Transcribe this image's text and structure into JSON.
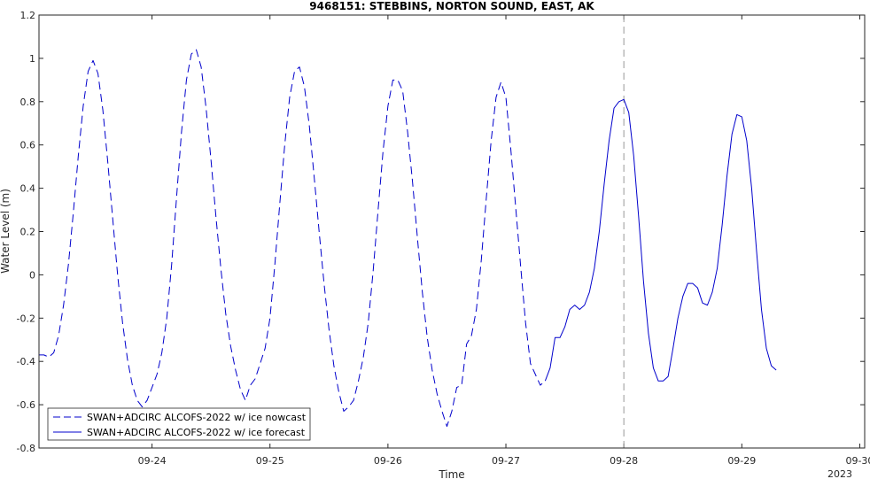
{
  "chart_data": {
    "type": "line",
    "title": "9468151: STEBBINS, NORTON SOUND, EAST, AK",
    "xlabel": "Time",
    "ylabel": "Water Level (m)",
    "year_label": "2023",
    "x_range": [
      "2023-09-23 01:00",
      "2023-09-30 01:00"
    ],
    "ylim": [
      -0.8,
      1.2
    ],
    "x_ticks": [
      {
        "label": "09-24",
        "t": "2023-09-24 00:00"
      },
      {
        "label": "09-25",
        "t": "2023-09-25 00:00"
      },
      {
        "label": "09-26",
        "t": "2023-09-26 00:00"
      },
      {
        "label": "09-27",
        "t": "2023-09-27 00:00"
      },
      {
        "label": "09-28",
        "t": "2023-09-28 00:00"
      },
      {
        "label": "09-29",
        "t": "2023-09-29 00:00"
      },
      {
        "label": "09-30",
        "t": "2023-09-30 00:00"
      }
    ],
    "y_ticks": [
      "-0.8",
      "-0.6",
      "-0.4",
      "-0.2",
      "0",
      "0.2",
      "0.4",
      "0.6",
      "0.8",
      "1",
      "1.2"
    ],
    "grid": false,
    "legend_position": "bottom-left",
    "vline": {
      "t": "2023-09-28 00:00",
      "style": "dashed",
      "color": "#999999"
    },
    "series": [
      {
        "name": "SWAN+ADCIRC ALCOFS-2022 w/ ice nowcast",
        "style": "dashed",
        "color": "#0000cc",
        "points": [
          [
            "2023-09-23 01:00",
            -0.37
          ],
          [
            "2023-09-23 02:00",
            -0.37
          ],
          [
            "2023-09-23 03:00",
            -0.38
          ],
          [
            "2023-09-23 04:00",
            -0.36
          ],
          [
            "2023-09-23 05:00",
            -0.28
          ],
          [
            "2023-09-23 06:00",
            -0.14
          ],
          [
            "2023-09-23 07:00",
            0.05
          ],
          [
            "2023-09-23 08:00",
            0.29
          ],
          [
            "2023-09-23 09:00",
            0.55
          ],
          [
            "2023-09-23 10:00",
            0.78
          ],
          [
            "2023-09-23 11:00",
            0.94
          ],
          [
            "2023-09-23 12:00",
            0.99
          ],
          [
            "2023-09-23 13:00",
            0.93
          ],
          [
            "2023-09-23 14:00",
            0.76
          ],
          [
            "2023-09-23 15:00",
            0.52
          ],
          [
            "2023-09-23 16:00",
            0.26
          ],
          [
            "2023-09-23 17:00",
            0.0
          ],
          [
            "2023-09-23 18:00",
            -0.22
          ],
          [
            "2023-09-23 19:00",
            -0.39
          ],
          [
            "2023-09-23 20:00",
            -0.51
          ],
          [
            "2023-09-23 21:00",
            -0.58
          ],
          [
            "2023-09-23 22:00",
            -0.61
          ],
          [
            "2023-09-23 23:00",
            -0.58
          ],
          [
            "2023-09-24 00:00",
            -0.52
          ],
          [
            "2023-09-24 01:00",
            -0.46
          ],
          [
            "2023-09-24 02:00",
            -0.36
          ],
          [
            "2023-09-24 03:00",
            -0.2
          ],
          [
            "2023-09-24 04:00",
            0.05
          ],
          [
            "2023-09-24 05:00",
            0.36
          ],
          [
            "2023-09-24 06:00",
            0.66
          ],
          [
            "2023-09-24 07:00",
            0.9
          ],
          [
            "2023-09-24 08:00",
            1.02
          ],
          [
            "2023-09-24 09:00",
            1.04
          ],
          [
            "2023-09-24 10:00",
            0.96
          ],
          [
            "2023-09-24 11:00",
            0.77
          ],
          [
            "2023-09-24 12:00",
            0.53
          ],
          [
            "2023-09-24 13:00",
            0.27
          ],
          [
            "2023-09-24 14:00",
            0.03
          ],
          [
            "2023-09-24 15:00",
            -0.18
          ],
          [
            "2023-09-24 16:00",
            -0.33
          ],
          [
            "2023-09-24 17:00",
            -0.44
          ],
          [
            "2023-09-24 18:00",
            -0.53
          ],
          [
            "2023-09-24 19:00",
            -0.58
          ],
          [
            "2023-09-24 20:00",
            -0.51
          ],
          [
            "2023-09-24 21:00",
            -0.48
          ],
          [
            "2023-09-24 22:00",
            -0.41
          ],
          [
            "2023-09-24 23:00",
            -0.34
          ],
          [
            "2023-09-25 00:00",
            -0.2
          ],
          [
            "2023-09-25 01:00",
            0.05
          ],
          [
            "2023-09-25 02:00",
            0.33
          ],
          [
            "2023-09-25 03:00",
            0.6
          ],
          [
            "2023-09-25 04:00",
            0.82
          ],
          [
            "2023-09-25 05:00",
            0.94
          ],
          [
            "2023-09-25 06:00",
            0.96
          ],
          [
            "2023-09-25 07:00",
            0.87
          ],
          [
            "2023-09-25 08:00",
            0.69
          ],
          [
            "2023-09-25 09:00",
            0.45
          ],
          [
            "2023-09-25 10:00",
            0.2
          ],
          [
            "2023-09-25 11:00",
            -0.04
          ],
          [
            "2023-09-25 12:00",
            -0.25
          ],
          [
            "2023-09-25 13:00",
            -0.42
          ],
          [
            "2023-09-25 14:00",
            -0.54
          ],
          [
            "2023-09-25 15:00",
            -0.63
          ],
          [
            "2023-09-25 16:00",
            -0.61
          ],
          [
            "2023-09-25 17:00",
            -0.58
          ],
          [
            "2023-09-25 18:00",
            -0.49
          ],
          [
            "2023-09-25 19:00",
            -0.38
          ],
          [
            "2023-09-25 20:00",
            -0.22
          ],
          [
            "2023-09-25 21:00",
            0.02
          ],
          [
            "2023-09-25 22:00",
            0.3
          ],
          [
            "2023-09-25 23:00",
            0.57
          ],
          [
            "2023-09-26 00:00",
            0.78
          ],
          [
            "2023-09-26 01:00",
            0.9
          ],
          [
            "2023-09-26 02:00",
            0.9
          ],
          [
            "2023-09-26 03:00",
            0.85
          ],
          [
            "2023-09-26 04:00",
            0.66
          ],
          [
            "2023-09-26 05:00",
            0.43
          ],
          [
            "2023-09-26 06:00",
            0.17
          ],
          [
            "2023-09-26 07:00",
            -0.08
          ],
          [
            "2023-09-26 08:00",
            -0.29
          ],
          [
            "2023-09-26 09:00",
            -0.44
          ],
          [
            "2023-09-26 10:00",
            -0.55
          ],
          [
            "2023-09-26 11:00",
            -0.63
          ],
          [
            "2023-09-26 12:00",
            -0.7
          ],
          [
            "2023-09-26 13:00",
            -0.63
          ],
          [
            "2023-09-26 14:00",
            -0.52
          ],
          [
            "2023-09-26 15:00",
            -0.51
          ],
          [
            "2023-09-26 16:00",
            -0.32
          ],
          [
            "2023-09-26 17:00",
            -0.28
          ],
          [
            "2023-09-26 18:00",
            -0.16
          ],
          [
            "2023-09-26 19:00",
            0.07
          ],
          [
            "2023-09-26 20:00",
            0.35
          ],
          [
            "2023-09-26 21:00",
            0.62
          ],
          [
            "2023-09-26 22:00",
            0.82
          ],
          [
            "2023-09-26 23:00",
            0.89
          ],
          [
            "2023-09-27 00:00",
            0.82
          ],
          [
            "2023-09-27 01:00",
            0.58
          ],
          [
            "2023-09-27 02:00",
            0.31
          ],
          [
            "2023-09-27 03:00",
            0.04
          ],
          [
            "2023-09-27 04:00",
            -0.22
          ],
          [
            "2023-09-27 05:00",
            -0.41
          ],
          [
            "2023-09-27 06:00",
            -0.46
          ],
          [
            "2023-09-27 07:00",
            -0.51
          ],
          [
            "2023-09-27 08:00",
            -0.49
          ]
        ]
      },
      {
        "name": "SWAN+ADCIRC ALCOFS-2022 w/ ice forecast",
        "style": "solid",
        "color": "#0000cc",
        "points": [
          [
            "2023-09-27 08:00",
            -0.49
          ],
          [
            "2023-09-27 09:00",
            -0.43
          ],
          [
            "2023-09-27 10:00",
            -0.29
          ],
          [
            "2023-09-27 11:00",
            -0.29
          ],
          [
            "2023-09-27 12:00",
            -0.24
          ],
          [
            "2023-09-27 13:00",
            -0.16
          ],
          [
            "2023-09-27 14:00",
            -0.14
          ],
          [
            "2023-09-27 15:00",
            -0.16
          ],
          [
            "2023-09-27 16:00",
            -0.14
          ],
          [
            "2023-09-27 17:00",
            -0.08
          ],
          [
            "2023-09-27 18:00",
            0.03
          ],
          [
            "2023-09-27 19:00",
            0.2
          ],
          [
            "2023-09-27 20:00",
            0.42
          ],
          [
            "2023-09-27 21:00",
            0.62
          ],
          [
            "2023-09-27 22:00",
            0.77
          ],
          [
            "2023-09-27 23:00",
            0.8
          ],
          [
            "2023-09-28 00:00",
            0.81
          ],
          [
            "2023-09-28 01:00",
            0.75
          ],
          [
            "2023-09-28 02:00",
            0.55
          ],
          [
            "2023-09-28 03:00",
            0.27
          ],
          [
            "2023-09-28 04:00",
            -0.03
          ],
          [
            "2023-09-28 05:00",
            -0.27
          ],
          [
            "2023-09-28 06:00",
            -0.43
          ],
          [
            "2023-09-28 07:00",
            -0.49
          ],
          [
            "2023-09-28 08:00",
            -0.49
          ],
          [
            "2023-09-28 09:00",
            -0.47
          ],
          [
            "2023-09-28 10:00",
            -0.34
          ],
          [
            "2023-09-28 11:00",
            -0.2
          ],
          [
            "2023-09-28 12:00",
            -0.1
          ],
          [
            "2023-09-28 13:00",
            -0.04
          ],
          [
            "2023-09-28 14:00",
            -0.04
          ],
          [
            "2023-09-28 15:00",
            -0.06
          ],
          [
            "2023-09-28 16:00",
            -0.13
          ],
          [
            "2023-09-28 17:00",
            -0.14
          ],
          [
            "2023-09-28 18:00",
            -0.08
          ],
          [
            "2023-09-28 19:00",
            0.03
          ],
          [
            "2023-09-28 20:00",
            0.23
          ],
          [
            "2023-09-28 21:00",
            0.46
          ],
          [
            "2023-09-28 22:00",
            0.65
          ],
          [
            "2023-09-28 23:00",
            0.74
          ],
          [
            "2023-09-29 00:00",
            0.73
          ],
          [
            "2023-09-29 01:00",
            0.62
          ],
          [
            "2023-09-29 02:00",
            0.4
          ],
          [
            "2023-09-29 03:00",
            0.11
          ],
          [
            "2023-09-29 04:00",
            -0.16
          ],
          [
            "2023-09-29 05:00",
            -0.34
          ],
          [
            "2023-09-29 06:00",
            -0.42
          ],
          [
            "2023-09-29 07:00",
            -0.44
          ]
        ]
      }
    ]
  }
}
